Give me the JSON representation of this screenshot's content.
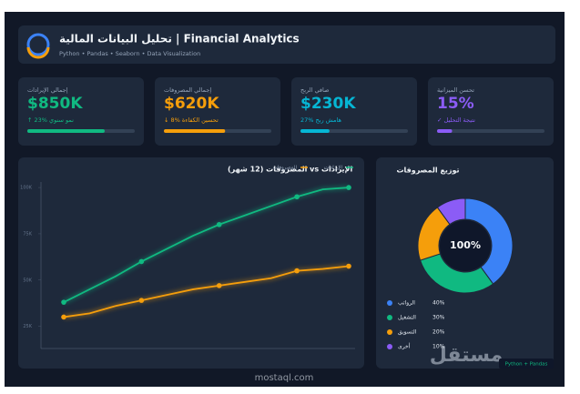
{
  "header": {
    "title": "تحليل البيانات المالية | Financial Analytics",
    "subtitle": "Python • Pandas • Seaborn • Data Visualization"
  },
  "kpis": [
    {
      "label": "إجمالي الإيرادات",
      "value": "$850K",
      "note": "↑ 23% نمو سنوي",
      "progress": 72,
      "color": "#10b981"
    },
    {
      "label": "إجمالي المصروفات",
      "value": "$620K",
      "note": "↓ 8% تحسين الكفاءة",
      "progress": 57,
      "color": "#f59e0b"
    },
    {
      "label": "صافي الربح",
      "value": "$230K",
      "note": "27% هامش ربح",
      "progress": 27,
      "color": "#06b6d4"
    },
    {
      "label": "تحسن الميزانية",
      "value": "15%",
      "note": "✓ نتيجة التحليل",
      "progress": 14,
      "color": "#8b5cf6"
    }
  ],
  "chart_data": [
    {
      "type": "line",
      "title": "الإيرادات vs المصروفات (12 شهر)",
      "categories": [
        null,
        null,
        null,
        null,
        null,
        null,
        null,
        null,
        null,
        null,
        null,
        null
      ],
      "series": [
        {
          "name": "الإيرادات",
          "color": "#10b981",
          "values": [
            38,
            45,
            52,
            60,
            67,
            74,
            80,
            85,
            90,
            95,
            99,
            100
          ]
        },
        {
          "name": "المصروفات",
          "color": "#f59e0b",
          "values": [
            30,
            32,
            36,
            39,
            42,
            45,
            47,
            49,
            51,
            55,
            56,
            57.5
          ]
        }
      ],
      "ylim": [
        13,
        103
      ],
      "yticks": [
        {
          "value": 25,
          "label": "25K"
        },
        {
          "value": 50,
          "label": "50K"
        },
        {
          "value": 75,
          "label": "75K"
        },
        {
          "value": 100,
          "label": "100K"
        }
      ]
    },
    {
      "type": "pie",
      "title": "توزيع المصروفات",
      "center_label": "100%",
      "categories": [
        "الرواتب",
        "التشغيل",
        "التسويق",
        "أخرى"
      ],
      "values": [
        40,
        30,
        20,
        10
      ],
      "value_labels": [
        "40%",
        "30%",
        "20%",
        "10%"
      ],
      "colors": [
        "#3b82f6",
        "#10b981",
        "#f59e0b",
        "#8b5cf6"
      ]
    }
  ],
  "badge": "Python + Pandas",
  "watermark": {
    "arabic": "مستقل",
    "latin": "mostaql.com"
  }
}
